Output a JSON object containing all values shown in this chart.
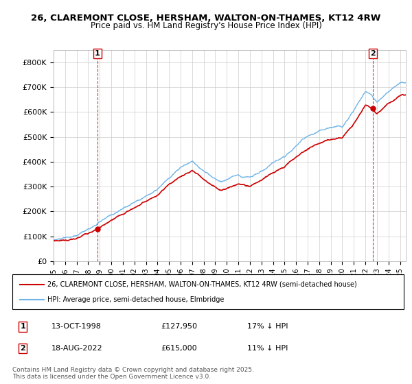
{
  "title_line1": "26, CLAREMONT CLOSE, HERSHAM, WALTON-ON-THAMES, KT12 4RW",
  "title_line2": "Price paid vs. HM Land Registry's House Price Index (HPI)",
  "ylabel": "",
  "ylim": [
    0,
    850000
  ],
  "yticks": [
    0,
    100000,
    200000,
    300000,
    400000,
    500000,
    600000,
    700000,
    800000
  ],
  "ytick_labels": [
    "£0",
    "£100K",
    "£200K",
    "£300K",
    "£400K",
    "£500K",
    "£600K",
    "£700K",
    "£800K"
  ],
  "legend_entry1": "26, CLAREMONT CLOSE, HERSHAM, WALTON-ON-THAMES, KT12 4RW (semi-detached house)",
  "legend_entry2": "HPI: Average price, semi-detached house, Elmbridge",
  "annotation1_label": "1",
  "annotation1_date": "13-OCT-1998",
  "annotation1_price": "£127,950",
  "annotation1_hpi": "17% ↓ HPI",
  "annotation2_label": "2",
  "annotation2_date": "18-AUG-2022",
  "annotation2_price": "£615,000",
  "annotation2_hpi": "11% ↓ HPI",
  "copyright_text": "Contains HM Land Registry data © Crown copyright and database right 2025.\nThis data is licensed under the Open Government Licence v3.0.",
  "sale1_x": 1998.79,
  "sale1_y": 127950,
  "sale2_x": 2022.63,
  "sale2_y": 615000,
  "hpi_color": "#6eb4e8",
  "price_color": "#cc0000",
  "sale_marker_color": "#cc0000",
  "vline_color": "#cc0000",
  "grid_color": "#cccccc",
  "bg_color": "#ffffff",
  "xmin": 1995,
  "xmax": 2025.5
}
